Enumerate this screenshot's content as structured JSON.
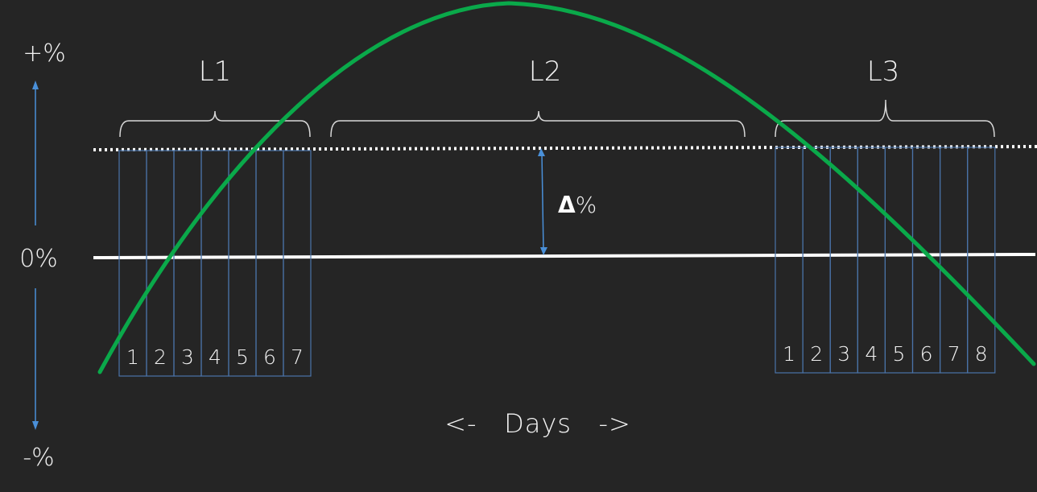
{
  "axis": {
    "top_label": "+%",
    "middle_label": "0%",
    "bottom_label": "-%"
  },
  "x_label": "<-   Days   ->",
  "delta_label": "%",
  "delta_symbol": "Δ",
  "groups": [
    {
      "label": "L1",
      "days": [
        "1",
        "2",
        "3",
        "4",
        "5",
        "6",
        "7"
      ]
    },
    {
      "label": "L2",
      "days": []
    },
    {
      "label": "L3",
      "days": [
        "1",
        "2",
        "3",
        "4",
        "5",
        "6",
        "7",
        "8"
      ]
    }
  ],
  "colors": {
    "background": "#252525",
    "curve": "#0aa94a",
    "baseline": "#ffffff",
    "threshold": "#ffffff",
    "day_box": "#4a73a8",
    "axis_arrow": "#4a90d9",
    "text": "#f2f2f2"
  }
}
